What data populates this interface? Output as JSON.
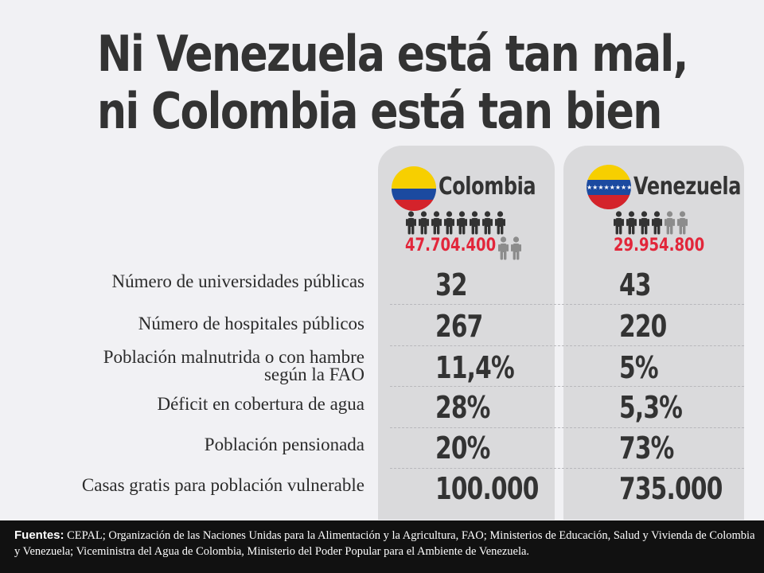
{
  "title": {
    "line1": "Ni Venezuela está tan mal,",
    "line2": "ni Colombia está tan bien"
  },
  "countries": [
    {
      "name": "Colombia",
      "population": "47.704.400",
      "flag": [
        "#f7cf00",
        "#1b4aa0",
        "#d4232b"
      ]
    },
    {
      "name": "Venezuela",
      "population": "29.954.800",
      "flag": [
        "#f7cf00",
        "#1b4aa0",
        "#d4232b"
      ]
    }
  ],
  "colors": {
    "dark_person": "#333333",
    "light_person": "#8c8c8c",
    "population": "#e2263a"
  },
  "rows": [
    {
      "label": "Número de universidades públicas",
      "colombia": "32",
      "venezuela": "43"
    },
    {
      "label": "Número de hospitales públicos",
      "colombia": "267",
      "venezuela": "220"
    },
    {
      "label_line1": "Población malnutrida o con hambre",
      "label_line2": "según la FAO",
      "colombia": "11,4%",
      "venezuela": "5%"
    },
    {
      "label": "Déficit en cobertura de agua",
      "colombia": "28%",
      "venezuela": "5,3%"
    },
    {
      "label": "Población pensionada",
      "colombia": "20%",
      "venezuela": "73%"
    },
    {
      "label": "Casas gratis para población vulnerable",
      "colombia": "100.000",
      "venezuela": "735.000"
    }
  ],
  "footer": {
    "label": "Fuentes:",
    "text": " CEPAL; Organización de las Naciones Unidas para la Alimentación y la Agricultura, FAO; Ministerios de Educación, Salud y Vivienda de Colombia y Venezuela; Viceministra del Agua de Colombia, Ministerio del Poder Popular para el Ambiente de Venezuela."
  }
}
